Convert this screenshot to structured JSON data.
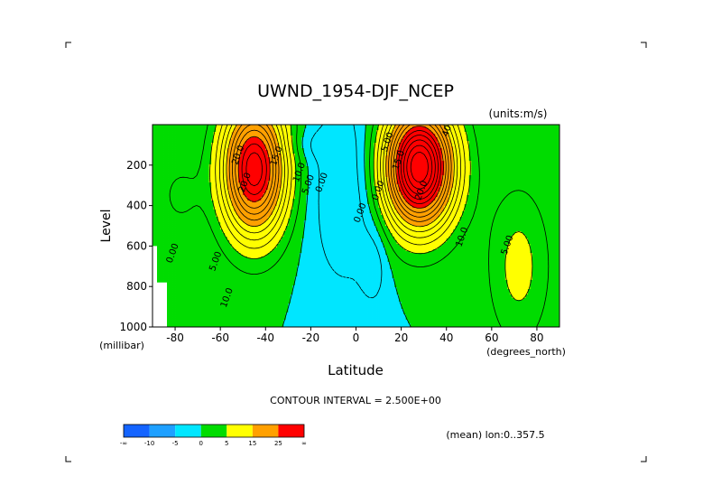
{
  "chart_data": {
    "type": "contour",
    "title": "UWND_1954-DJF_NCEP",
    "units_label": "(units:m/s)",
    "xlabel": "Latitude",
    "x_units": "(degrees_north)",
    "ylabel": "Level",
    "y_units": "(millibar)",
    "xlim": [
      -90,
      90
    ],
    "ylim": [
      1000,
      0
    ],
    "x_ticks": [
      "-80",
      "-60",
      "-40",
      "-20",
      "0",
      "20",
      "40",
      "60",
      "80"
    ],
    "x_tick_values": [
      -80,
      -60,
      -40,
      -20,
      0,
      20,
      40,
      60,
      80
    ],
    "y_ticks": [
      "200",
      "400",
      "600",
      "800",
      "1000"
    ],
    "y_tick_values": [
      200,
      400,
      600,
      800,
      1000
    ],
    "contour_interval_text": "CONTOUR INTERVAL = 2.500E+00",
    "mean_text": "(mean) lon:0..357.5",
    "contour_labels": [
      {
        "text": "40.0",
        "lat": 42,
        "lev": 15
      },
      {
        "text": "20.0",
        "lat": -51,
        "lev": 155
      },
      {
        "text": "15.0",
        "lat": -34,
        "lev": 160
      },
      {
        "text": "10.0",
        "lat": -24,
        "lev": 240
      },
      {
        "text": "5.00",
        "lat": -20,
        "lev": 300
      },
      {
        "text": "0.00",
        "lat": -14,
        "lev": 290
      },
      {
        "text": "5.00",
        "lat": 15,
        "lev": 90
      },
      {
        "text": "15.0",
        "lat": 20,
        "lev": 180
      },
      {
        "text": "0.00",
        "lat": 11,
        "lev": 330
      },
      {
        "text": "0.00",
        "lat": 3,
        "lev": 440
      },
      {
        "text": "20.0",
        "lat": 30,
        "lev": 330
      },
      {
        "text": "10.0",
        "lat": 48,
        "lev": 560
      },
      {
        "text": "5.00",
        "lat": 68,
        "lev": 600
      },
      {
        "text": "0.00",
        "lat": -80,
        "lev": 640
      },
      {
        "text": "5.00",
        "lat": -61,
        "lev": 680
      },
      {
        "text": "10.0",
        "lat": -56,
        "lev": 860
      },
      {
        "text": "20.0",
        "lat": -48,
        "lev": 290
      }
    ],
    "jets": [
      {
        "lat": -45,
        "lev": 220,
        "peak": 32,
        "sx": 10,
        "sy": 230
      },
      {
        "lat": 28,
        "lev": 210,
        "peak": 40,
        "sx": 11,
        "sy": 210
      }
    ],
    "legend": {
      "labels": [
        "-∞",
        "-10",
        "-5",
        "0",
        "5",
        "15",
        "25",
        "∞"
      ],
      "colors": [
        "#1464ff",
        "#1ea0ff",
        "#00e6ff",
        "#00dc00",
        "#ffff00",
        "#ffa000",
        "#ff0000"
      ]
    }
  }
}
